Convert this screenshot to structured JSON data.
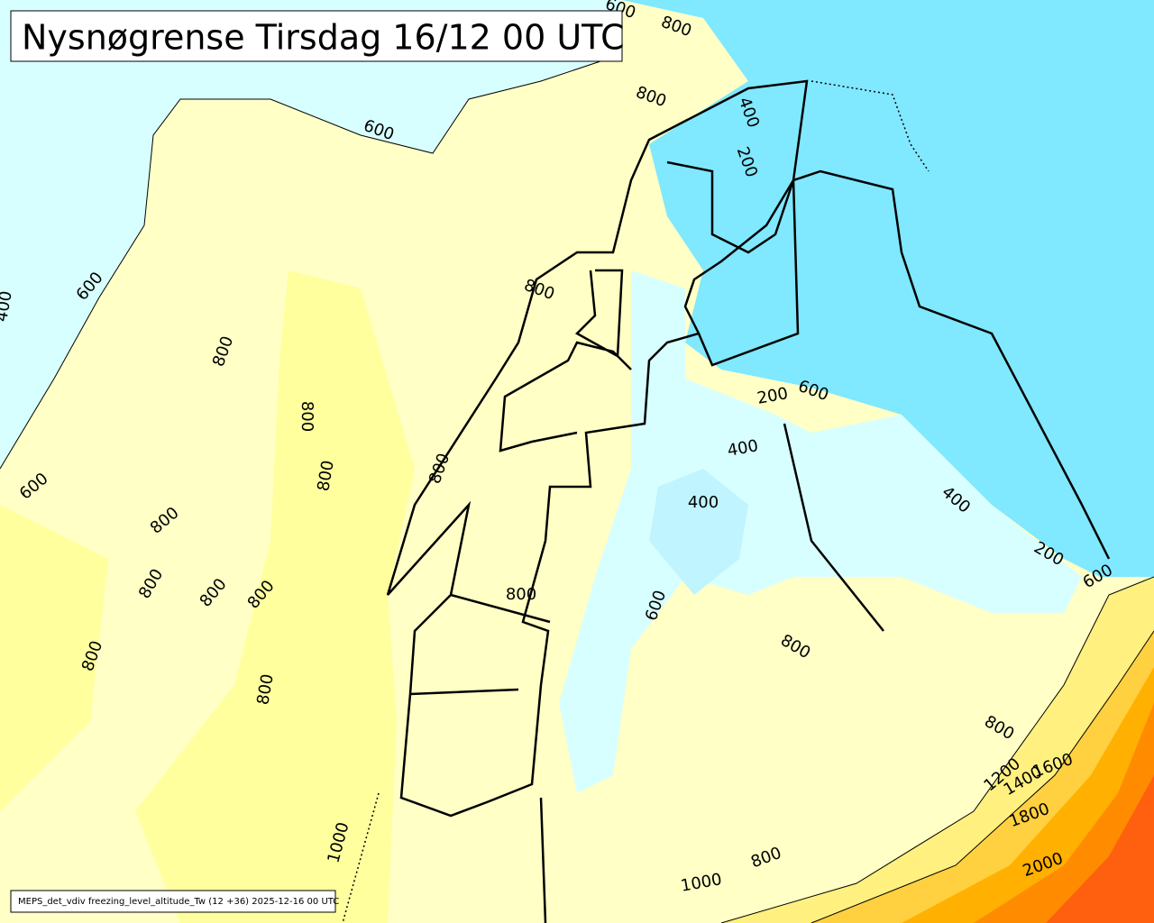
{
  "title": "Nysnøgrense Tirsdag 16/12 00 UTC",
  "footer": "MEPS_det_vdiv freezing_level_altitude_Tw (12 +36) 2025-12-16 00 UTC",
  "contour_labels": [
    600,
    800,
    800,
    600,
    400,
    200,
    600,
    400,
    800,
    800,
    800,
    800,
    800,
    200,
    600,
    400,
    400,
    600,
    800,
    800,
    800,
    800,
    800,
    600,
    400,
    200,
    600,
    800,
    800,
    800,
    800,
    1200,
    1400,
    1600,
    1800,
    1000,
    800,
    2000,
    1000
  ]
}
